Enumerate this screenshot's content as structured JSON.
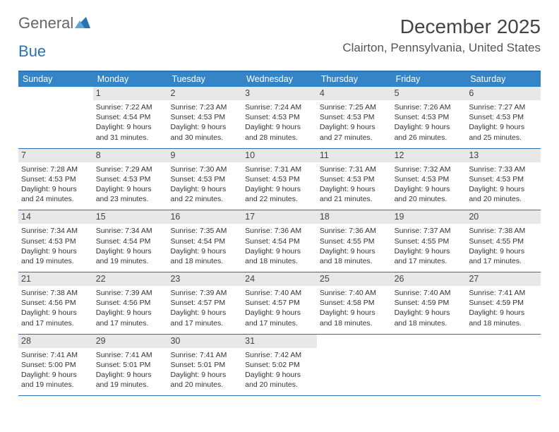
{
  "logo": {
    "part1": "General",
    "part2_letter": "B",
    "part2_rest": "ue"
  },
  "title": "December 2025",
  "location": "Clairton, Pennsylvania, United States",
  "dow": [
    "Sunday",
    "Monday",
    "Tuesday",
    "Wednesday",
    "Thursday",
    "Friday",
    "Saturday"
  ],
  "colors": {
    "header_bg": "#3484c6",
    "border": "#2a72b5",
    "daybar": "#e8e8e8"
  },
  "weeks": [
    [
      {
        "n": "",
        "sr": "",
        "ss": "",
        "d1": "",
        "d2": ""
      },
      {
        "n": "1",
        "sr": "Sunrise: 7:22 AM",
        "ss": "Sunset: 4:54 PM",
        "d1": "Daylight: 9 hours",
        "d2": "and 31 minutes."
      },
      {
        "n": "2",
        "sr": "Sunrise: 7:23 AM",
        "ss": "Sunset: 4:53 PM",
        "d1": "Daylight: 9 hours",
        "d2": "and 30 minutes."
      },
      {
        "n": "3",
        "sr": "Sunrise: 7:24 AM",
        "ss": "Sunset: 4:53 PM",
        "d1": "Daylight: 9 hours",
        "d2": "and 28 minutes."
      },
      {
        "n": "4",
        "sr": "Sunrise: 7:25 AM",
        "ss": "Sunset: 4:53 PM",
        "d1": "Daylight: 9 hours",
        "d2": "and 27 minutes."
      },
      {
        "n": "5",
        "sr": "Sunrise: 7:26 AM",
        "ss": "Sunset: 4:53 PM",
        "d1": "Daylight: 9 hours",
        "d2": "and 26 minutes."
      },
      {
        "n": "6",
        "sr": "Sunrise: 7:27 AM",
        "ss": "Sunset: 4:53 PM",
        "d1": "Daylight: 9 hours",
        "d2": "and 25 minutes."
      }
    ],
    [
      {
        "n": "7",
        "sr": "Sunrise: 7:28 AM",
        "ss": "Sunset: 4:53 PM",
        "d1": "Daylight: 9 hours",
        "d2": "and 24 minutes."
      },
      {
        "n": "8",
        "sr": "Sunrise: 7:29 AM",
        "ss": "Sunset: 4:53 PM",
        "d1": "Daylight: 9 hours",
        "d2": "and 23 minutes."
      },
      {
        "n": "9",
        "sr": "Sunrise: 7:30 AM",
        "ss": "Sunset: 4:53 PM",
        "d1": "Daylight: 9 hours",
        "d2": "and 22 minutes."
      },
      {
        "n": "10",
        "sr": "Sunrise: 7:31 AM",
        "ss": "Sunset: 4:53 PM",
        "d1": "Daylight: 9 hours",
        "d2": "and 22 minutes."
      },
      {
        "n": "11",
        "sr": "Sunrise: 7:31 AM",
        "ss": "Sunset: 4:53 PM",
        "d1": "Daylight: 9 hours",
        "d2": "and 21 minutes."
      },
      {
        "n": "12",
        "sr": "Sunrise: 7:32 AM",
        "ss": "Sunset: 4:53 PM",
        "d1": "Daylight: 9 hours",
        "d2": "and 20 minutes."
      },
      {
        "n": "13",
        "sr": "Sunrise: 7:33 AM",
        "ss": "Sunset: 4:53 PM",
        "d1": "Daylight: 9 hours",
        "d2": "and 20 minutes."
      }
    ],
    [
      {
        "n": "14",
        "sr": "Sunrise: 7:34 AM",
        "ss": "Sunset: 4:53 PM",
        "d1": "Daylight: 9 hours",
        "d2": "and 19 minutes."
      },
      {
        "n": "15",
        "sr": "Sunrise: 7:34 AM",
        "ss": "Sunset: 4:54 PM",
        "d1": "Daylight: 9 hours",
        "d2": "and 19 minutes."
      },
      {
        "n": "16",
        "sr": "Sunrise: 7:35 AM",
        "ss": "Sunset: 4:54 PM",
        "d1": "Daylight: 9 hours",
        "d2": "and 18 minutes."
      },
      {
        "n": "17",
        "sr": "Sunrise: 7:36 AM",
        "ss": "Sunset: 4:54 PM",
        "d1": "Daylight: 9 hours",
        "d2": "and 18 minutes."
      },
      {
        "n": "18",
        "sr": "Sunrise: 7:36 AM",
        "ss": "Sunset: 4:55 PM",
        "d1": "Daylight: 9 hours",
        "d2": "and 18 minutes."
      },
      {
        "n": "19",
        "sr": "Sunrise: 7:37 AM",
        "ss": "Sunset: 4:55 PM",
        "d1": "Daylight: 9 hours",
        "d2": "and 17 minutes."
      },
      {
        "n": "20",
        "sr": "Sunrise: 7:38 AM",
        "ss": "Sunset: 4:55 PM",
        "d1": "Daylight: 9 hours",
        "d2": "and 17 minutes."
      }
    ],
    [
      {
        "n": "21",
        "sr": "Sunrise: 7:38 AM",
        "ss": "Sunset: 4:56 PM",
        "d1": "Daylight: 9 hours",
        "d2": "and 17 minutes."
      },
      {
        "n": "22",
        "sr": "Sunrise: 7:39 AM",
        "ss": "Sunset: 4:56 PM",
        "d1": "Daylight: 9 hours",
        "d2": "and 17 minutes."
      },
      {
        "n": "23",
        "sr": "Sunrise: 7:39 AM",
        "ss": "Sunset: 4:57 PM",
        "d1": "Daylight: 9 hours",
        "d2": "and 17 minutes."
      },
      {
        "n": "24",
        "sr": "Sunrise: 7:40 AM",
        "ss": "Sunset: 4:57 PM",
        "d1": "Daylight: 9 hours",
        "d2": "and 17 minutes."
      },
      {
        "n": "25",
        "sr": "Sunrise: 7:40 AM",
        "ss": "Sunset: 4:58 PM",
        "d1": "Daylight: 9 hours",
        "d2": "and 18 minutes."
      },
      {
        "n": "26",
        "sr": "Sunrise: 7:40 AM",
        "ss": "Sunset: 4:59 PM",
        "d1": "Daylight: 9 hours",
        "d2": "and 18 minutes."
      },
      {
        "n": "27",
        "sr": "Sunrise: 7:41 AM",
        "ss": "Sunset: 4:59 PM",
        "d1": "Daylight: 9 hours",
        "d2": "and 18 minutes."
      }
    ],
    [
      {
        "n": "28",
        "sr": "Sunrise: 7:41 AM",
        "ss": "Sunset: 5:00 PM",
        "d1": "Daylight: 9 hours",
        "d2": "and 19 minutes."
      },
      {
        "n": "29",
        "sr": "Sunrise: 7:41 AM",
        "ss": "Sunset: 5:01 PM",
        "d1": "Daylight: 9 hours",
        "d2": "and 19 minutes."
      },
      {
        "n": "30",
        "sr": "Sunrise: 7:41 AM",
        "ss": "Sunset: 5:01 PM",
        "d1": "Daylight: 9 hours",
        "d2": "and 20 minutes."
      },
      {
        "n": "31",
        "sr": "Sunrise: 7:42 AM",
        "ss": "Sunset: 5:02 PM",
        "d1": "Daylight: 9 hours",
        "d2": "and 20 minutes."
      },
      {
        "n": "",
        "sr": "",
        "ss": "",
        "d1": "",
        "d2": ""
      },
      {
        "n": "",
        "sr": "",
        "ss": "",
        "d1": "",
        "d2": ""
      },
      {
        "n": "",
        "sr": "",
        "ss": "",
        "d1": "",
        "d2": ""
      }
    ]
  ]
}
